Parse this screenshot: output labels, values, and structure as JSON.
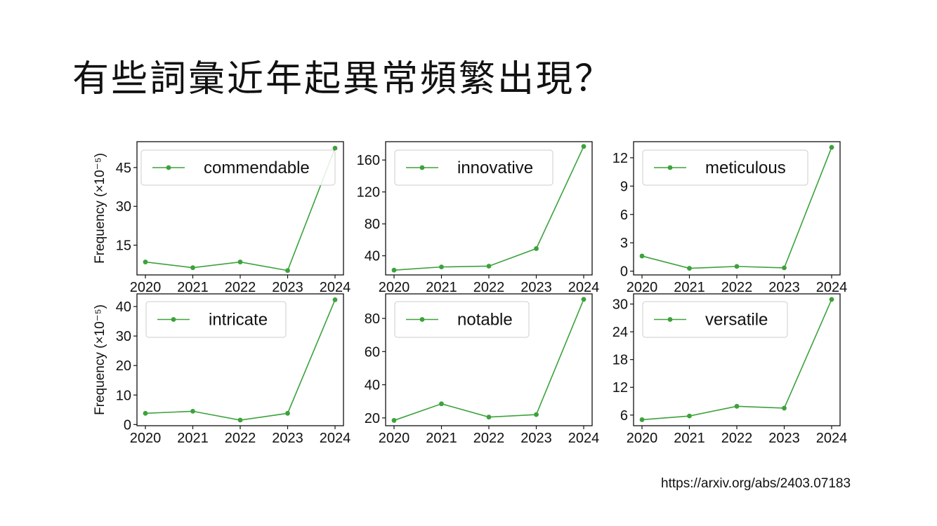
{
  "slide": {
    "title": "有些詞彙近年起異常頻繁出現？",
    "source": "https://arxiv.org/abs/2403.07183"
  },
  "colors": {
    "line": "#3ca23c",
    "axis": "#111111",
    "text": "#111111"
  },
  "chart_data": [
    {
      "type": "line",
      "x": [
        2020,
        2021,
        2022,
        2023,
        2024
      ],
      "series": [
        {
          "name": "commendable",
          "values": [
            8.5,
            6.3,
            8.5,
            5.2,
            52.5
          ]
        }
      ],
      "ylabel": "Frequency (×10⁻⁵)",
      "yticks": [
        15,
        30,
        45
      ],
      "ylim": [
        3.5,
        55
      ],
      "legend": "top"
    },
    {
      "type": "line",
      "x": [
        2020,
        2021,
        2022,
        2023,
        2024
      ],
      "series": [
        {
          "name": "innovative",
          "values": [
            22,
            26,
            27,
            49,
            177
          ]
        }
      ],
      "ylabel": "",
      "yticks": [
        40,
        80,
        120,
        160
      ],
      "ylim": [
        16,
        183
      ],
      "legend": "top"
    },
    {
      "type": "line",
      "x": [
        2020,
        2021,
        2022,
        2023,
        2024
      ],
      "series": [
        {
          "name": "meticulous",
          "values": [
            1.6,
            0.3,
            0.5,
            0.35,
            13.1
          ]
        }
      ],
      "ylabel": "",
      "yticks": [
        0,
        3,
        6,
        9,
        12
      ],
      "ylim": [
        -0.4,
        13.7
      ],
      "legend": "top"
    },
    {
      "type": "line",
      "x": [
        2020,
        2021,
        2022,
        2023,
        2024
      ],
      "series": [
        {
          "name": "intricate",
          "values": [
            3.8,
            4.5,
            1.5,
            3.8,
            42.3
          ]
        }
      ],
      "ylabel": "Frequency (×10⁻⁵)",
      "yticks": [
        0,
        10,
        20,
        30,
        40
      ],
      "ylim": [
        -0.4,
        44.3
      ],
      "legend": "top"
    },
    {
      "type": "line",
      "x": [
        2020,
        2021,
        2022,
        2023,
        2024
      ],
      "series": [
        {
          "name": "notable",
          "values": [
            18.5,
            28.5,
            20.5,
            22,
            91.5
          ]
        }
      ],
      "ylabel": "",
      "yticks": [
        20,
        40,
        60,
        80
      ],
      "ylim": [
        15.3,
        94.8
      ],
      "legend": "top"
    },
    {
      "type": "line",
      "x": [
        2020,
        2021,
        2022,
        2023,
        2024
      ],
      "series": [
        {
          "name": "versatile",
          "values": [
            5,
            5.8,
            7.9,
            7.5,
            31
          ]
        }
      ],
      "ylabel": "",
      "yticks": [
        6,
        12,
        18,
        24,
        30
      ],
      "ylim": [
        3.7,
        32.2
      ],
      "legend": "top"
    }
  ]
}
